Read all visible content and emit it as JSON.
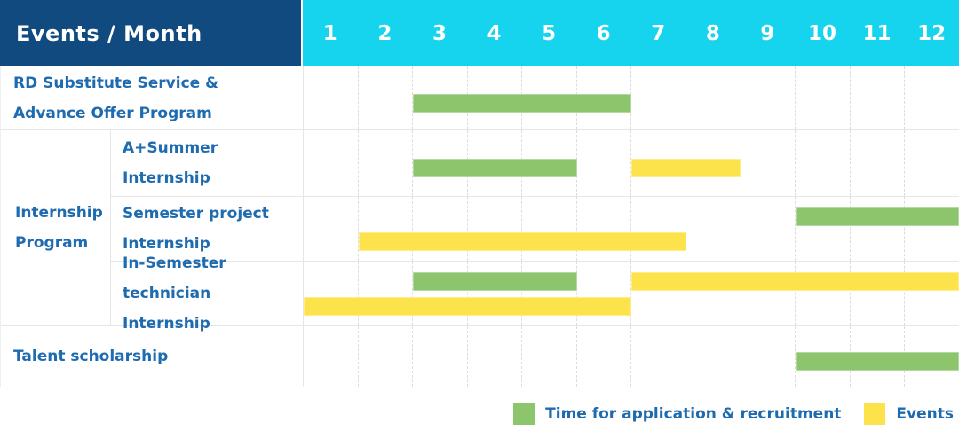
{
  "header": {
    "events_month_label": "Events / Month",
    "months": [
      "1",
      "2",
      "3",
      "4",
      "5",
      "6",
      "7",
      "8",
      "9",
      "10",
      "11",
      "12"
    ]
  },
  "rows": {
    "rd": {
      "label": "RD Substitute Service & Advance Offer Program"
    },
    "internship_group": {
      "label": "Internship Program"
    },
    "a_plus_summer": {
      "label": "A+Summer Internship"
    },
    "semester_project": {
      "label": "Semester project Internship"
    },
    "in_semester": {
      "label": "In-Semester technician Internship"
    },
    "talent": {
      "label": "Talent scholarship"
    }
  },
  "gantt": {
    "rd": [
      {
        "color": "green",
        "start": 3,
        "end": 6,
        "lane": "mid"
      }
    ],
    "a_plus_summer": [
      {
        "color": "green",
        "start": 3,
        "end": 5,
        "lane": "mid"
      },
      {
        "color": "yellow",
        "start": 7,
        "end": 8,
        "lane": "mid"
      }
    ],
    "semester_project": [
      {
        "color": "green",
        "start": 10,
        "end": 12,
        "lane": "top"
      },
      {
        "color": "yellow",
        "start": 2,
        "end": 7,
        "lane": "bottom"
      }
    ],
    "in_semester": [
      {
        "color": "green",
        "start": 3,
        "end": 5,
        "lane": "top"
      },
      {
        "color": "yellow",
        "start": 7,
        "end": 12,
        "lane": "top"
      },
      {
        "color": "yellow",
        "start": 1,
        "end": 6,
        "lane": "bottom"
      }
    ],
    "talent": [
      {
        "color": "green",
        "start": 10,
        "end": 12,
        "lane": "mid"
      }
    ]
  },
  "legend": {
    "items": [
      {
        "color": "green",
        "label": "Time for application & recruitment"
      },
      {
        "color": "yellow",
        "label": "Events"
      }
    ]
  },
  "colors": {
    "header_bg": "#114a7f",
    "months_bg": "#16d3ee",
    "label_text": "#1e6bb0",
    "green": "#8cc56c",
    "yellow": "#fde34b",
    "border": "#e6e6e6"
  },
  "chart_data": {
    "type": "table",
    "subtype": "gantt",
    "title": "Events / Month",
    "xlabel": "Month",
    "x_ticks": [
      1,
      2,
      3,
      4,
      5,
      6,
      7,
      8,
      9,
      10,
      11,
      12
    ],
    "x_range": [
      1,
      12
    ],
    "grid": "dashed-vertical",
    "legend_position": "bottom-right",
    "legend": {
      "green": "Time for application & recruitment",
      "yellow": "Events"
    },
    "rows": [
      {
        "group": null,
        "name": "RD Substitute Service & Advance Offer Program",
        "bars": [
          {
            "category": "Time for application & recruitment",
            "color": "#8cc56c",
            "start_month": 3,
            "end_month": 6
          }
        ]
      },
      {
        "group": "Internship Program",
        "name": "A+Summer Internship",
        "bars": [
          {
            "category": "Time for application & recruitment",
            "color": "#8cc56c",
            "start_month": 3,
            "end_month": 5
          },
          {
            "category": "Events",
            "color": "#fde34b",
            "start_month": 7,
            "end_month": 8
          }
        ]
      },
      {
        "group": "Internship Program",
        "name": "Semester project Internship",
        "bars": [
          {
            "category": "Time for application & recruitment",
            "color": "#8cc56c",
            "start_month": 10,
            "end_month": 12
          },
          {
            "category": "Events",
            "color": "#fde34b",
            "start_month": 2,
            "end_month": 7
          }
        ]
      },
      {
        "group": "Internship Program",
        "name": "In-Semester technician Internship",
        "bars": [
          {
            "category": "Time for application & recruitment",
            "color": "#8cc56c",
            "start_month": 3,
            "end_month": 5
          },
          {
            "category": "Events",
            "color": "#fde34b",
            "start_month": 7,
            "end_month": 12
          },
          {
            "category": "Events",
            "color": "#fde34b",
            "start_month": 1,
            "end_month": 6
          }
        ]
      },
      {
        "group": null,
        "name": "Talent scholarship",
        "bars": [
          {
            "category": "Time for application & recruitment",
            "color": "#8cc56c",
            "start_month": 10,
            "end_month": 12
          }
        ]
      }
    ]
  }
}
